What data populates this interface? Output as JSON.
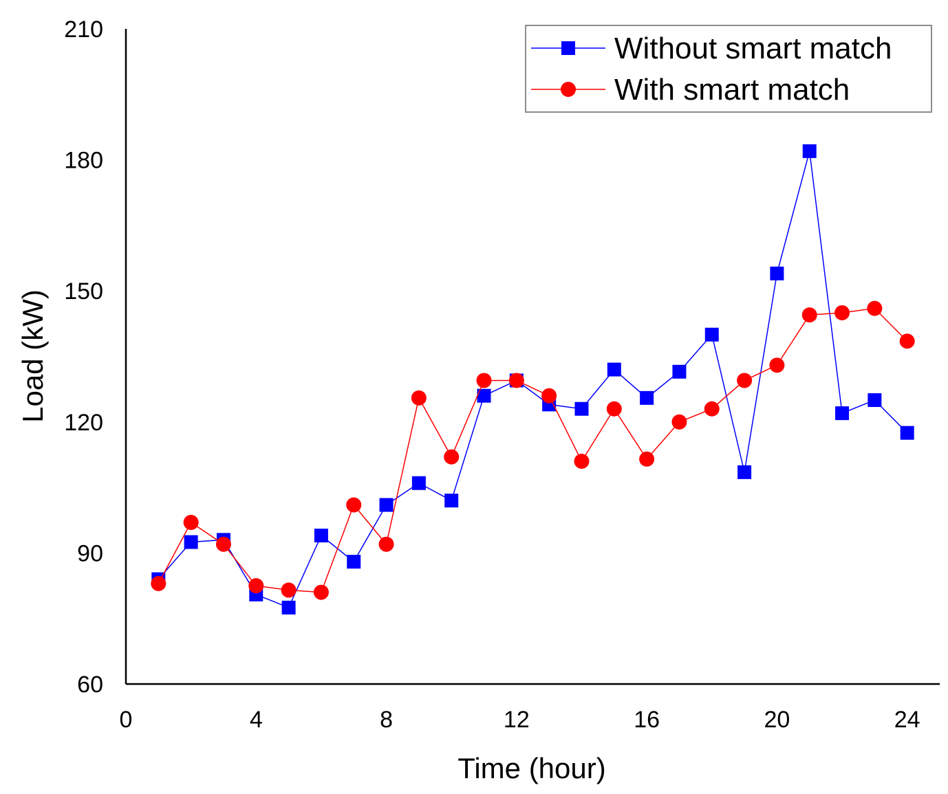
{
  "chart_data": {
    "type": "line",
    "title": "",
    "xlabel": "Time (hour)",
    "ylabel": "Load (kW)",
    "xlim": [
      0,
      25
    ],
    "ylim": [
      60,
      210
    ],
    "xticks": [
      0,
      4,
      8,
      12,
      16,
      20,
      24
    ],
    "yticks": [
      60,
      90,
      120,
      150,
      180,
      210
    ],
    "grid": false,
    "legend_position": "top-right",
    "x": [
      1,
      2,
      3,
      4,
      5,
      6,
      7,
      8,
      9,
      10,
      11,
      12,
      13,
      14,
      15,
      16,
      17,
      18,
      19,
      20,
      21,
      22,
      23,
      24
    ],
    "series": [
      {
        "name": "Without smart match",
        "color": "#0000ff",
        "marker": "square",
        "values": [
          84,
          92.5,
          93,
          80.5,
          77.5,
          94,
          88,
          101,
          106,
          102,
          126,
          129.5,
          124,
          123,
          132,
          125.5,
          131.5,
          140,
          108.5,
          154,
          182,
          122,
          125,
          117.5
        ]
      },
      {
        "name": "With smart match",
        "color": "#ff0000",
        "marker": "circle",
        "values": [
          83,
          97,
          92,
          82.5,
          81.5,
          81,
          101,
          92,
          125.5,
          112,
          129.5,
          129.5,
          126,
          111,
          123,
          111.5,
          120,
          123,
          129.5,
          133,
          144.5,
          145,
          146,
          138.5
        ]
      }
    ]
  }
}
